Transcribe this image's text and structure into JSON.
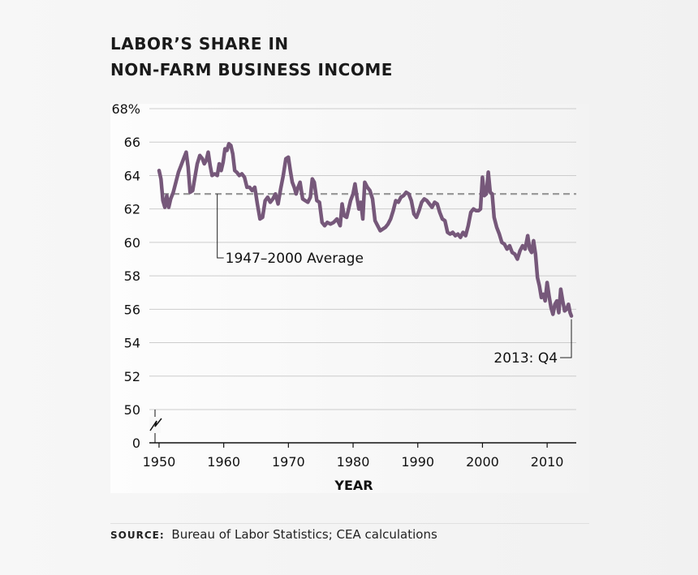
{
  "title": {
    "line1": "LABOR’S SHARE IN",
    "line2": "NON-FARM BUSINESS INCOME"
  },
  "source": {
    "label": "SOURCE:",
    "text": "Bureau of Labor Statistics; CEA calculations"
  },
  "colors": {
    "line": "#76587a",
    "grid": "#cccccc",
    "average": "#9a9a9a",
    "axis": "#111111"
  },
  "chart_data": {
    "type": "line",
    "title": "Labor’s Share in Non-Farm Business Income",
    "xlabel": "YEAR",
    "ylabel": "",
    "xlim": [
      1948.5,
      2014.5
    ],
    "ylim": [
      50,
      68
    ],
    "y_axis_break": "between 0 and 50",
    "y_ticks": [
      {
        "value": 68,
        "label": "68%"
      },
      {
        "value": 66,
        "label": "66"
      },
      {
        "value": 64,
        "label": "64"
      },
      {
        "value": 62,
        "label": "62"
      },
      {
        "value": 60,
        "label": "60"
      },
      {
        "value": 58,
        "label": "58"
      },
      {
        "value": 56,
        "label": "56"
      },
      {
        "value": 54,
        "label": "54"
      },
      {
        "value": 52,
        "label": "52"
      },
      {
        "value": 50,
        "label": "50"
      },
      {
        "value": 0,
        "label": "0"
      }
    ],
    "x_ticks": [
      {
        "value": 1950,
        "label": "1950"
      },
      {
        "value": 1960,
        "label": "1960"
      },
      {
        "value": 1970,
        "label": "1970"
      },
      {
        "value": 1980,
        "label": "1980"
      },
      {
        "value": 1990,
        "label": "1990"
      },
      {
        "value": 2000,
        "label": "2000"
      },
      {
        "value": 2010,
        "label": "2010"
      }
    ],
    "grid": true,
    "average": {
      "value": 62.9,
      "label": "1947–2000 Average",
      "anchor_x": 1959
    },
    "endpoint_annotation": {
      "x": 2013.75,
      "y": 55.6,
      "label": "2013: Q4"
    },
    "series": [
      {
        "name": "Labor’s share",
        "points": [
          [
            1950.0,
            64.3
          ],
          [
            1950.3,
            63.8
          ],
          [
            1950.6,
            62.5
          ],
          [
            1950.9,
            62.1
          ],
          [
            1951.2,
            62.8
          ],
          [
            1951.5,
            62.1
          ],
          [
            1951.8,
            62.6
          ],
          [
            1952.2,
            63.0
          ],
          [
            1952.6,
            63.6
          ],
          [
            1953.0,
            64.2
          ],
          [
            1953.4,
            64.6
          ],
          [
            1953.8,
            65.0
          ],
          [
            1954.2,
            65.4
          ],
          [
            1954.5,
            64.5
          ],
          [
            1954.8,
            63.0
          ],
          [
            1955.2,
            63.1
          ],
          [
            1955.5,
            63.8
          ],
          [
            1955.9,
            64.7
          ],
          [
            1956.3,
            65.2
          ],
          [
            1956.7,
            65.0
          ],
          [
            1957.0,
            64.7
          ],
          [
            1957.3,
            64.9
          ],
          [
            1957.6,
            65.4
          ],
          [
            1957.9,
            64.6
          ],
          [
            1958.2,
            64.0
          ],
          [
            1958.6,
            64.1
          ],
          [
            1959.0,
            64.0
          ],
          [
            1959.3,
            64.7
          ],
          [
            1959.6,
            64.3
          ],
          [
            1959.9,
            64.8
          ],
          [
            1960.2,
            65.6
          ],
          [
            1960.5,
            65.5
          ],
          [
            1960.8,
            65.9
          ],
          [
            1961.1,
            65.8
          ],
          [
            1961.4,
            65.3
          ],
          [
            1961.7,
            64.3
          ],
          [
            1962.0,
            64.2
          ],
          [
            1962.4,
            64.0
          ],
          [
            1962.8,
            64.1
          ],
          [
            1963.2,
            63.9
          ],
          [
            1963.6,
            63.3
          ],
          [
            1964.0,
            63.3
          ],
          [
            1964.4,
            63.1
          ],
          [
            1964.8,
            63.3
          ],
          [
            1965.2,
            62.3
          ],
          [
            1965.6,
            61.4
          ],
          [
            1966.0,
            61.5
          ],
          [
            1966.4,
            62.5
          ],
          [
            1966.8,
            62.7
          ],
          [
            1967.2,
            62.4
          ],
          [
            1967.6,
            62.6
          ],
          [
            1968.0,
            62.9
          ],
          [
            1968.4,
            62.3
          ],
          [
            1968.8,
            63.2
          ],
          [
            1969.2,
            64.0
          ],
          [
            1969.6,
            65.0
          ],
          [
            1970.0,
            65.1
          ],
          [
            1970.3,
            64.3
          ],
          [
            1970.6,
            63.6
          ],
          [
            1970.9,
            63.3
          ],
          [
            1971.2,
            62.9
          ],
          [
            1971.5,
            63.3
          ],
          [
            1971.8,
            63.6
          ],
          [
            1972.2,
            62.6
          ],
          [
            1972.6,
            62.5
          ],
          [
            1973.0,
            62.4
          ],
          [
            1973.4,
            62.7
          ],
          [
            1973.7,
            63.8
          ],
          [
            1974.0,
            63.6
          ],
          [
            1974.4,
            62.5
          ],
          [
            1974.8,
            62.4
          ],
          [
            1975.2,
            61.2
          ],
          [
            1975.6,
            61.0
          ],
          [
            1976.0,
            61.2
          ],
          [
            1976.5,
            61.1
          ],
          [
            1977.0,
            61.2
          ],
          [
            1977.5,
            61.4
          ],
          [
            1978.0,
            61.0
          ],
          [
            1978.3,
            62.3
          ],
          [
            1978.6,
            61.6
          ],
          [
            1979.0,
            61.5
          ],
          [
            1979.3,
            62.0
          ],
          [
            1979.6,
            62.5
          ],
          [
            1980.0,
            62.9
          ],
          [
            1980.3,
            63.5
          ],
          [
            1980.6,
            62.7
          ],
          [
            1980.9,
            62.0
          ],
          [
            1981.2,
            62.4
          ],
          [
            1981.5,
            61.4
          ],
          [
            1981.8,
            63.6
          ],
          [
            1982.2,
            63.3
          ],
          [
            1982.6,
            63.1
          ],
          [
            1983.0,
            62.6
          ],
          [
            1983.4,
            61.3
          ],
          [
            1983.8,
            61.0
          ],
          [
            1984.2,
            60.7
          ],
          [
            1984.6,
            60.8
          ],
          [
            1985.0,
            60.9
          ],
          [
            1985.4,
            61.1
          ],
          [
            1985.8,
            61.4
          ],
          [
            1986.2,
            61.9
          ],
          [
            1986.6,
            62.5
          ],
          [
            1987.0,
            62.4
          ],
          [
            1987.4,
            62.7
          ],
          [
            1987.8,
            62.8
          ],
          [
            1988.2,
            63.0
          ],
          [
            1988.6,
            62.9
          ],
          [
            1989.0,
            62.5
          ],
          [
            1989.4,
            61.7
          ],
          [
            1989.8,
            61.5
          ],
          [
            1990.2,
            61.9
          ],
          [
            1990.6,
            62.4
          ],
          [
            1991.0,
            62.6
          ],
          [
            1991.4,
            62.5
          ],
          [
            1991.8,
            62.3
          ],
          [
            1992.2,
            62.1
          ],
          [
            1992.6,
            62.4
          ],
          [
            1993.0,
            62.3
          ],
          [
            1993.4,
            61.8
          ],
          [
            1993.8,
            61.4
          ],
          [
            1994.2,
            61.3
          ],
          [
            1994.6,
            60.6
          ],
          [
            1995.0,
            60.5
          ],
          [
            1995.4,
            60.6
          ],
          [
            1995.8,
            60.4
          ],
          [
            1996.2,
            60.5
          ],
          [
            1996.6,
            60.3
          ],
          [
            1997.0,
            60.6
          ],
          [
            1997.4,
            60.4
          ],
          [
            1997.8,
            61.0
          ],
          [
            1998.2,
            61.8
          ],
          [
            1998.6,
            62.0
          ],
          [
            1999.0,
            61.9
          ],
          [
            1999.4,
            61.9
          ],
          [
            1999.7,
            62.0
          ],
          [
            2000.0,
            63.9
          ],
          [
            2000.3,
            62.8
          ],
          [
            2000.6,
            62.9
          ],
          [
            2000.9,
            64.2
          ],
          [
            2001.2,
            63.0
          ],
          [
            2001.5,
            62.9
          ],
          [
            2001.8,
            61.5
          ],
          [
            2002.2,
            60.9
          ],
          [
            2002.6,
            60.5
          ],
          [
            2003.0,
            60.0
          ],
          [
            2003.4,
            59.9
          ],
          [
            2003.8,
            59.6
          ],
          [
            2004.2,
            59.8
          ],
          [
            2004.6,
            59.4
          ],
          [
            2005.0,
            59.3
          ],
          [
            2005.4,
            59.0
          ],
          [
            2005.8,
            59.5
          ],
          [
            2006.2,
            59.8
          ],
          [
            2006.6,
            59.6
          ],
          [
            2007.0,
            60.4
          ],
          [
            2007.3,
            59.6
          ],
          [
            2007.6,
            59.4
          ],
          [
            2007.9,
            60.1
          ],
          [
            2008.2,
            59.3
          ],
          [
            2008.5,
            57.9
          ],
          [
            2008.8,
            57.4
          ],
          [
            2009.1,
            56.7
          ],
          [
            2009.4,
            56.9
          ],
          [
            2009.7,
            56.5
          ],
          [
            2010.0,
            57.6
          ],
          [
            2010.3,
            56.8
          ],
          [
            2010.6,
            56.1
          ],
          [
            2010.9,
            55.7
          ],
          [
            2011.2,
            56.3
          ],
          [
            2011.5,
            56.5
          ],
          [
            2011.8,
            55.8
          ],
          [
            2012.1,
            57.2
          ],
          [
            2012.4,
            56.5
          ],
          [
            2012.7,
            55.9
          ],
          [
            2013.0,
            56.0
          ],
          [
            2013.3,
            56.3
          ],
          [
            2013.55,
            55.8
          ],
          [
            2013.75,
            55.6
          ]
        ]
      }
    ]
  }
}
